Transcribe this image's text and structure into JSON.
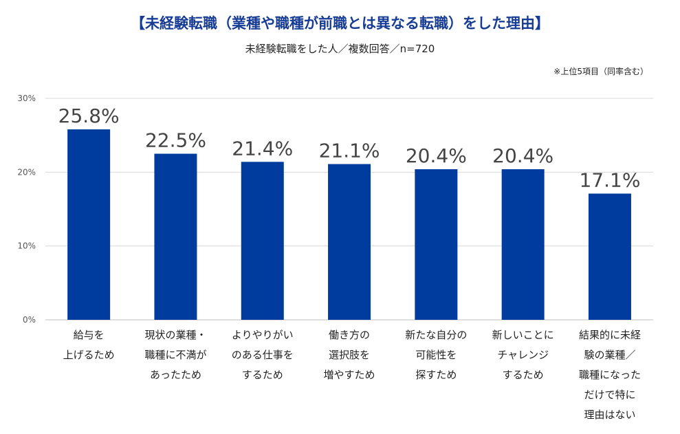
{
  "title": "【未経験転職（業種や職種が前職とは異なる転職）をした理由】",
  "subtitle": "未経験転職をした人／複数回答／n=720",
  "note": "※上位5項目（同率含む）",
  "chart_data": {
    "type": "bar",
    "title": "【未経験転職（業種や職種が前職とは異なる転職）をした理由】",
    "subtitle": "未経験転職をした人／複数回答／n=720",
    "categories": [
      "給与を\n上げるため",
      "現状の業種・\n職種に不満が\nあったため",
      "よりやりがい\nのある仕事を\nするため",
      "働き方の\n選択肢を\n増やすため",
      "新たな自分の\n可能性を\n探すため",
      "新しいことに\nチャレンジ\nするため",
      "結果的に未経\n験の業種／\n職種になった\nだけで特に\n理由はない"
    ],
    "values": [
      25.8,
      22.5,
      21.4,
      21.1,
      20.4,
      20.4,
      17.1
    ],
    "value_labels": [
      "25.8%",
      "22.5%",
      "21.4%",
      "21.1%",
      "20.4%",
      "20.4%",
      "17.1%"
    ],
    "y_ticks": [
      0,
      10,
      20,
      30
    ],
    "y_tick_labels": [
      "0%",
      "10%",
      "20%",
      "30%"
    ],
    "ylim": [
      0,
      30
    ],
    "grid": true,
    "bar_color": "#003c9d",
    "grid_color": "#d9d9d9"
  }
}
